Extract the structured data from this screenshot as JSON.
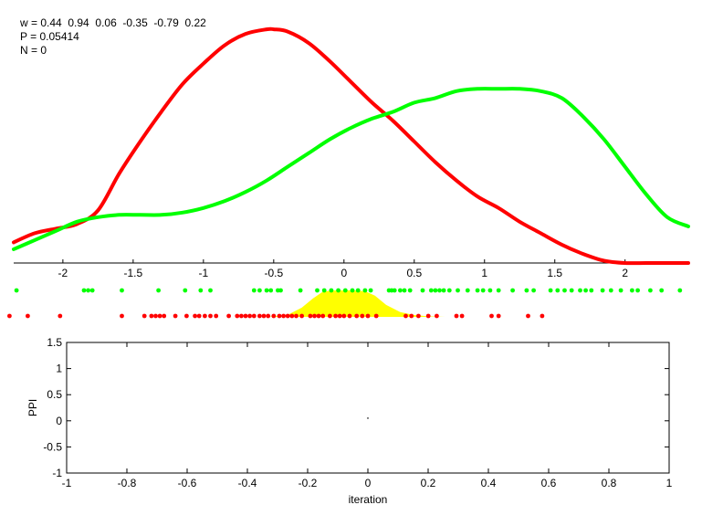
{
  "stats": {
    "w_line": "w = 0.44  0.94  0.06  -0.35  -0.79  0.22",
    "p_line": "P = 0.05414",
    "n_line": "N = 0"
  },
  "colors": {
    "red": "#ff0000",
    "green": "#00ff00",
    "yellow": "#ffff00",
    "axis": "#000000"
  },
  "chart_data": [
    {
      "type": "line",
      "title": "",
      "xlabel": "",
      "ylabel": "",
      "xlim": [
        -2.35,
        2.45
      ],
      "ylim": [
        0,
        1
      ],
      "xticks": [
        -2,
        -1.5,
        -1,
        -0.5,
        0,
        0.5,
        1,
        1.5,
        2
      ],
      "xtick_labels": [
        "-2",
        "-1.5",
        "-1",
        "-0.5",
        "0",
        "0.5",
        "1",
        "1.5",
        "2"
      ],
      "grid": false,
      "series": [
        {
          "color": "#ff0000",
          "x": [
            -2.35,
            -2.2,
            -2.05,
            -1.9,
            -1.75,
            -1.6,
            -1.45,
            -1.3,
            -1.15,
            -1.0,
            -0.85,
            -0.7,
            -0.55,
            -0.5,
            -0.4,
            -0.25,
            -0.1,
            0.05,
            0.2,
            0.35,
            0.5,
            0.65,
            0.8,
            0.95,
            1.1,
            1.25,
            1.4,
            1.55,
            1.7,
            1.85,
            2.0,
            2.15,
            2.3,
            2.45
          ],
          "y": [
            0.09,
            0.13,
            0.15,
            0.17,
            0.23,
            0.39,
            0.53,
            0.66,
            0.78,
            0.87,
            0.95,
            1.0,
            1.02,
            1.02,
            1.01,
            0.96,
            0.88,
            0.79,
            0.7,
            0.62,
            0.53,
            0.44,
            0.36,
            0.29,
            0.24,
            0.18,
            0.13,
            0.08,
            0.04,
            0.01,
            0.0,
            0.0,
            0.0,
            0.0
          ]
        },
        {
          "color": "#00ff00",
          "x": [
            -2.35,
            -2.2,
            -2.05,
            -1.9,
            -1.75,
            -1.6,
            -1.45,
            -1.3,
            -1.15,
            -1.0,
            -0.85,
            -0.7,
            -0.55,
            -0.4,
            -0.25,
            -0.1,
            0.05,
            0.2,
            0.35,
            0.5,
            0.65,
            0.8,
            0.95,
            1.1,
            1.25,
            1.4,
            1.55,
            1.7,
            1.85,
            2.0,
            2.15,
            2.3,
            2.45
          ],
          "y": [
            0.06,
            0.1,
            0.14,
            0.18,
            0.2,
            0.21,
            0.21,
            0.21,
            0.22,
            0.24,
            0.27,
            0.31,
            0.36,
            0.42,
            0.48,
            0.54,
            0.59,
            0.63,
            0.66,
            0.7,
            0.72,
            0.75,
            0.76,
            0.76,
            0.76,
            0.75,
            0.72,
            0.64,
            0.54,
            0.42,
            0.3,
            0.2,
            0.16
          ]
        }
      ]
    },
    {
      "type": "scatter",
      "title": "",
      "series": [
        {
          "color": "#00ff00",
          "x": [
            -2.33,
            -1.85,
            -1.82,
            -1.79,
            -1.58,
            -1.32,
            -1.13,
            -1.02,
            -0.95,
            -0.64,
            -0.6,
            -0.55,
            -0.52,
            -0.47,
            -0.45,
            -0.31,
            -0.19,
            -0.14,
            -0.09,
            -0.04,
            0.01,
            0.06,
            0.1,
            0.15,
            0.19,
            0.32,
            0.34,
            0.36,
            0.4,
            0.43,
            0.47,
            0.56,
            0.62,
            0.65,
            0.68,
            0.71,
            0.75,
            0.81,
            0.88,
            0.95,
            0.99,
            1.04,
            1.1,
            1.2,
            1.3,
            1.35,
            1.47,
            1.52,
            1.57,
            1.62,
            1.68,
            1.72,
            1.76,
            1.84,
            1.9,
            1.97,
            2.05,
            2.09,
            2.18,
            2.26,
            2.39
          ],
          "y": [
            1,
            1,
            1,
            1,
            1,
            1,
            1,
            1,
            1,
            1,
            1,
            1,
            1,
            1,
            1,
            1,
            1,
            1,
            1,
            1,
            1,
            1,
            1,
            1,
            1,
            1,
            1,
            1,
            1,
            1,
            1,
            1,
            1,
            1,
            1,
            1,
            1,
            1,
            1,
            1,
            1,
            1,
            1,
            1,
            1,
            1,
            1,
            1,
            1,
            1,
            1,
            1,
            1,
            1,
            1,
            1,
            1,
            1,
            1,
            1,
            1
          ]
        },
        {
          "color": "#ff0000",
          "x": [
            -2.38,
            -2.25,
            -2.02,
            -1.58,
            -1.42,
            -1.37,
            -1.34,
            -1.31,
            -1.28,
            -1.2,
            -1.12,
            -1.06,
            -1.03,
            -0.99,
            -0.95,
            -0.91,
            -0.82,
            -0.76,
            -0.73,
            -0.7,
            -0.67,
            -0.64,
            -0.6,
            -0.57,
            -0.54,
            -0.5,
            -0.46,
            -0.43,
            -0.4,
            -0.37,
            -0.34,
            -0.3,
            -0.24,
            -0.21,
            -0.18,
            -0.15,
            -0.1,
            -0.06,
            -0.03,
            0.0,
            0.04,
            0.09,
            0.13,
            0.17,
            0.23,
            0.44,
            0.48,
            0.53,
            0.6,
            0.66,
            0.8,
            0.84,
            1.05,
            1.1,
            1.31,
            1.41
          ],
          "y": [
            0,
            0,
            0,
            0,
            0,
            0,
            0,
            0,
            0,
            0,
            0,
            0,
            0,
            0,
            0,
            0,
            0,
            0,
            0,
            0,
            0,
            0,
            0,
            0,
            0,
            0,
            0,
            0,
            0,
            0,
            0,
            0,
            0,
            0,
            0,
            0,
            0,
            0,
            0,
            0,
            0,
            0,
            0,
            0,
            0,
            0,
            0,
            0,
            0,
            0,
            0,
            0,
            0,
            0,
            0,
            0
          ]
        },
        {
          "type": "area",
          "color": "#ffff00",
          "x": [
            -0.55,
            -0.4,
            -0.3,
            -0.22,
            -0.15,
            -0.08,
            0.0,
            0.08,
            0.15,
            0.22,
            0.3,
            0.4,
            0.5,
            0.6,
            0.72
          ],
          "y": [
            0.0,
            0.08,
            0.35,
            0.7,
            0.95,
            1.0,
            1.0,
            1.0,
            0.97,
            0.8,
            0.45,
            0.18,
            0.07,
            0.02,
            0.0
          ]
        }
      ]
    },
    {
      "type": "scatter",
      "title": "",
      "xlabel": "iteration",
      "ylabel": "PPI",
      "xlim": [
        -1,
        1
      ],
      "ylim": [
        -1,
        1.5
      ],
      "xticks": [
        -1,
        -0.8,
        -0.6,
        -0.4,
        -0.2,
        0,
        0.2,
        0.4,
        0.6,
        0.8,
        1
      ],
      "xtick_labels": [
        "-1",
        "-0.8",
        "-0.6",
        "-0.4",
        "-0.2",
        "0",
        "0.2",
        "0.4",
        "0.6",
        "0.8",
        "1"
      ],
      "yticks": [
        -1,
        -0.5,
        0,
        0.5,
        1,
        1.5
      ],
      "ytick_labels": [
        "-1",
        "-0.5",
        "0",
        "0.5",
        "1",
        "1.5"
      ],
      "grid": false,
      "series": [
        {
          "color": "#000000",
          "x": [
            0
          ],
          "y": [
            0.05
          ]
        }
      ]
    }
  ]
}
